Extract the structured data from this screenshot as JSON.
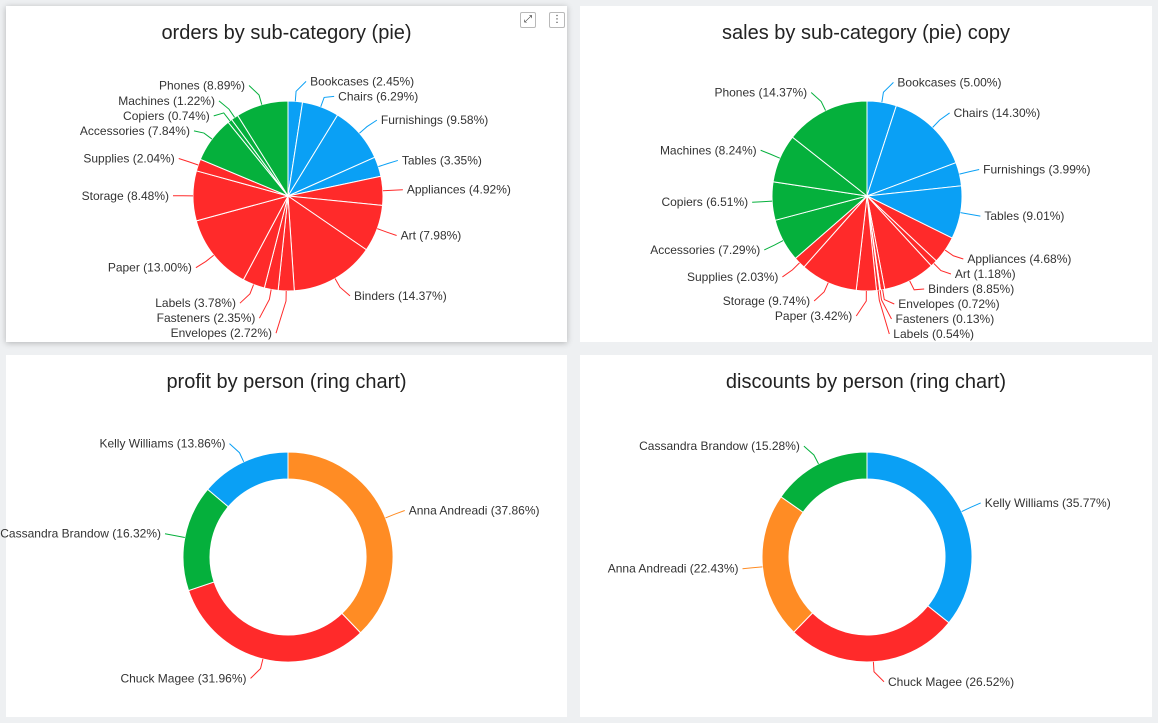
{
  "colors": {
    "blue": "#0aa0f5",
    "red": "#ff2a2a",
    "green": "#05b03c",
    "orange": "#ff8c24"
  },
  "panel_controls": {
    "expand": "expand-icon",
    "menu": "more-vertical-icon"
  },
  "chart_data": [
    {
      "type": "pie",
      "title": "orders by sub-category (pie)",
      "slices": [
        {
          "label": "Bookcases",
          "value": 2.45,
          "color": "#0aa0f5",
          "display": "Bookcases (2.45%)"
        },
        {
          "label": "Chairs",
          "value": 6.29,
          "color": "#0aa0f5",
          "display": "Chairs (6.29%)"
        },
        {
          "label": "Furnishings",
          "value": 9.58,
          "color": "#0aa0f5",
          "display": "Furnishings (9.58%)"
        },
        {
          "label": "Tables",
          "value": 3.35,
          "color": "#0aa0f5",
          "display": "Tables (3.35%)"
        },
        {
          "label": "Appliances",
          "value": 4.92,
          "color": "#ff2a2a",
          "display": "Appliances (4.92%)"
        },
        {
          "label": "Art",
          "value": 7.98,
          "color": "#ff2a2a",
          "display": "Art (7.98%)"
        },
        {
          "label": "Binders",
          "value": 14.37,
          "color": "#ff2a2a",
          "display": "Binders (14.37%)"
        },
        {
          "label": "Envelopes",
          "value": 2.72,
          "color": "#ff2a2a",
          "display": "Envelopes (2.72%)"
        },
        {
          "label": "Fasteners",
          "value": 2.35,
          "color": "#ff2a2a",
          "display": "Fasteners (2.35%)"
        },
        {
          "label": "Labels",
          "value": 3.78,
          "color": "#ff2a2a",
          "display": "Labels (3.78%)"
        },
        {
          "label": "Paper",
          "value": 13.0,
          "color": "#ff2a2a",
          "display": "Paper (13.00%)"
        },
        {
          "label": "Storage",
          "value": 8.48,
          "color": "#ff2a2a",
          "display": "Storage (8.48%)"
        },
        {
          "label": "Supplies",
          "value": 2.04,
          "color": "#ff2a2a",
          "display": "Supplies (2.04%)"
        },
        {
          "label": "Accessories",
          "value": 7.84,
          "color": "#05b03c",
          "display": "Accessories (7.84%)"
        },
        {
          "label": "Copiers",
          "value": 0.74,
          "color": "#05b03c",
          "display": "Copiers (0.74%)"
        },
        {
          "label": "Machines",
          "value": 1.22,
          "color": "#05b03c",
          "display": "Machines (1.22%)"
        },
        {
          "label": "Phones",
          "value": 8.89,
          "color": "#05b03c",
          "display": "Phones (8.89%)"
        }
      ]
    },
    {
      "type": "pie",
      "title": "sales by sub-category (pie) copy",
      "slices": [
        {
          "label": "Bookcases",
          "value": 5.0,
          "color": "#0aa0f5",
          "display": "Bookcases (5.00%)"
        },
        {
          "label": "Chairs",
          "value": 14.3,
          "color": "#0aa0f5",
          "display": "Chairs (14.30%)"
        },
        {
          "label": "Furnishings",
          "value": 3.99,
          "color": "#0aa0f5",
          "display": "Furnishings (3.99%)"
        },
        {
          "label": "Tables",
          "value": 9.01,
          "color": "#0aa0f5",
          "display": "Tables (9.01%)"
        },
        {
          "label": "Appliances",
          "value": 4.68,
          "color": "#ff2a2a",
          "display": "Appliances (4.68%)"
        },
        {
          "label": "Art",
          "value": 1.18,
          "color": "#ff2a2a",
          "display": "Art (1.18%)"
        },
        {
          "label": "Binders",
          "value": 8.85,
          "color": "#ff2a2a",
          "display": "Binders (8.85%)"
        },
        {
          "label": "Envelopes",
          "value": 0.72,
          "color": "#ff2a2a",
          "display": "Envelopes (0.72%)"
        },
        {
          "label": "Fasteners",
          "value": 0.13,
          "color": "#ff2a2a",
          "display": "Fasteners (0.13%)"
        },
        {
          "label": "Labels",
          "value": 0.54,
          "color": "#ff2a2a",
          "display": "Labels (0.54%)"
        },
        {
          "label": "Paper",
          "value": 3.42,
          "color": "#ff2a2a",
          "display": "Paper (3.42%)"
        },
        {
          "label": "Storage",
          "value": 9.74,
          "color": "#ff2a2a",
          "display": "Storage (9.74%)"
        },
        {
          "label": "Supplies",
          "value": 2.03,
          "color": "#ff2a2a",
          "display": "Supplies (2.03%)"
        },
        {
          "label": "Accessories",
          "value": 7.29,
          "color": "#05b03c",
          "display": "Accessories (7.29%)"
        },
        {
          "label": "Copiers",
          "value": 6.51,
          "color": "#05b03c",
          "display": "Copiers (6.51%)"
        },
        {
          "label": "Machines",
          "value": 8.24,
          "color": "#05b03c",
          "display": "Machines (8.24%)"
        },
        {
          "label": "Phones",
          "value": 14.37,
          "color": "#05b03c",
          "display": "Phones (14.37%)"
        }
      ]
    },
    {
      "type": "ring",
      "title": "profit by person (ring chart)",
      "slices": [
        {
          "label": "Anna Andreadi",
          "value": 37.86,
          "color": "#ff8c24",
          "display": "Anna Andreadi (37.86%)"
        },
        {
          "label": "Chuck Magee",
          "value": 31.96,
          "color": "#ff2a2a",
          "display": "Chuck Magee (31.96%)"
        },
        {
          "label": "Cassandra Brandow",
          "value": 16.32,
          "color": "#05b03c",
          "display": "Cassandra Brandow (16.32%)"
        },
        {
          "label": "Kelly Williams",
          "value": 13.86,
          "color": "#0aa0f5",
          "display": "Kelly Williams (13.86%)"
        }
      ]
    },
    {
      "type": "ring",
      "title": "discounts by person (ring chart)",
      "slices": [
        {
          "label": "Kelly Williams",
          "value": 35.77,
          "color": "#0aa0f5",
          "display": "Kelly Williams (35.77%)"
        },
        {
          "label": "Chuck Magee",
          "value": 26.52,
          "color": "#ff2a2a",
          "display": "Chuck Magee (26.52%)"
        },
        {
          "label": "Anna Andreadi",
          "value": 22.43,
          "color": "#ff8c24",
          "display": "Anna Andreadi (22.43%)"
        },
        {
          "label": "Cassandra Brandow",
          "value": 15.28,
          "color": "#05b03c",
          "display": "Cassandra Brandow (15.28%)"
        }
      ]
    }
  ]
}
